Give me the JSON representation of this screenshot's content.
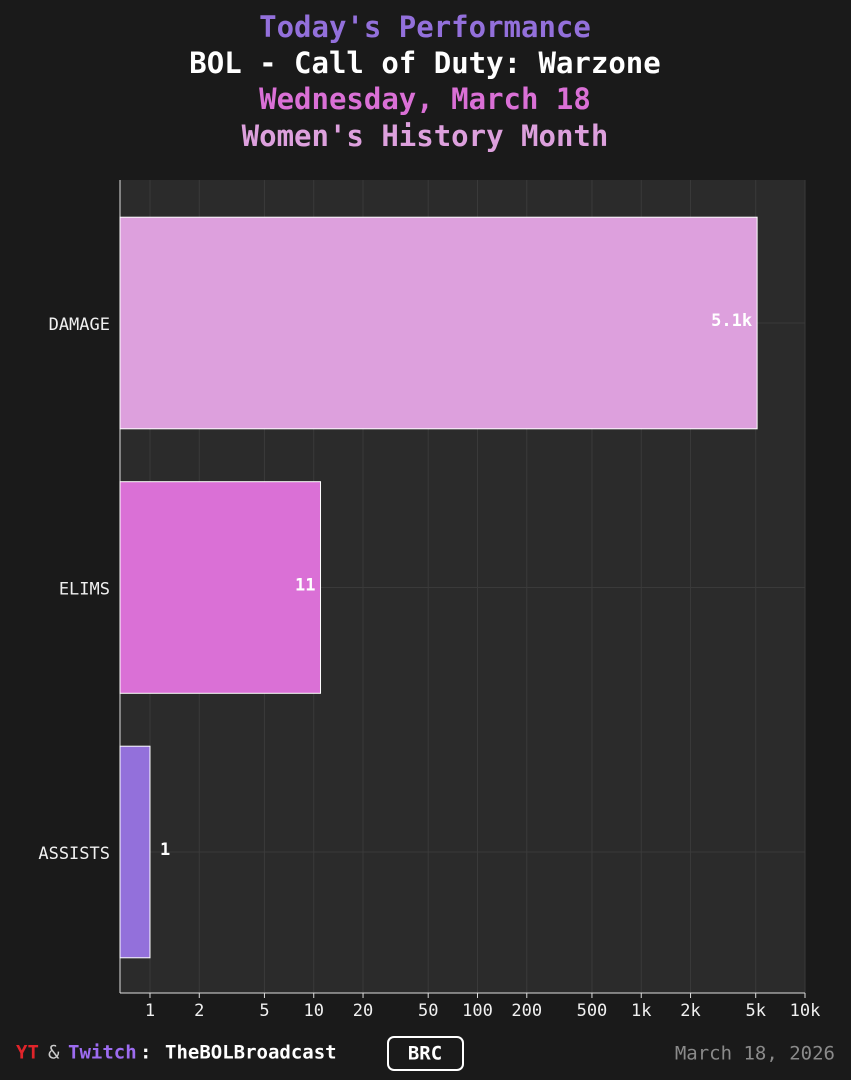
{
  "chart_data": {
    "type": "bar",
    "orientation": "horizontal",
    "title": "Today's Performance",
    "subtitle": "BOL - Call of Duty: Warzone",
    "date_line": "Wednesday, March 18",
    "theme": "Women's History Month",
    "categories": [
      "DAMAGE",
      "ELIMS",
      "ASSISTS"
    ],
    "values": [
      5100,
      11,
      1
    ],
    "value_labels": [
      "5.1k",
      "11",
      "1"
    ],
    "colors": [
      "#dda0dd",
      "#da70d6",
      "#9370db"
    ],
    "xscale": "log",
    "xlim": [
      0.656,
      10000
    ],
    "xticks": [
      1,
      2,
      5,
      10,
      20,
      50,
      100,
      200,
      500,
      {
        "value": 1000,
        "label": "1k"
      },
      {
        "value": 2000,
        "label": "2k"
      },
      {
        "value": 5000,
        "label": "5k"
      },
      {
        "value": 10000,
        "label": "10k"
      }
    ],
    "grid": true
  },
  "footer": {
    "yt": "YT",
    "amp": "&",
    "twitch": "Twitch",
    "sep": ":",
    "handle": "TheBOLBroadcast",
    "badge": "BRC",
    "date": "March 18, 2026"
  }
}
